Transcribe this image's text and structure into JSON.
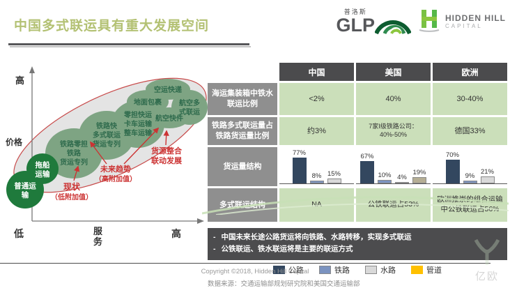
{
  "page": {
    "title": "中国多式联运具有重大发展空间",
    "copyright": "Copyright ©2018, Hidden Hill Capital",
    "watermark": "亿欧"
  },
  "logos": {
    "glp_cn": "普洛斯",
    "glp_en": "GLP",
    "hidden_hill_name": "HIDDEN HILL",
    "hidden_hill_cap": "CAPITAL"
  },
  "colors": {
    "title": "#b3c173",
    "table_col_header_bg": "#4b4b4d",
    "table_row_header_bg": "#8f8f8f",
    "table_cell_bg": "#cbdfba",
    "notes_bg": "#4c4c4e",
    "bubble_dark_green": "#1f7a3c",
    "bubble_sage_green": "#7ea483",
    "annotation_red": "#cc3333"
  },
  "diagram": {
    "y_axis_top": "高",
    "y_axis_label": "价格",
    "x_axis_left": "低",
    "x_axis_label_l1": "服",
    "x_axis_label_l2": "务",
    "x_axis_right": "高",
    "bubbles": [
      {
        "l1": "普通运",
        "l2": "输"
      },
      {
        "l1": "拖船",
        "l2": "运输"
      },
      {
        "l1": "铁路零担",
        "l2": "铁路",
        "l3": "货运专列"
      },
      {
        "l1": "铁路快",
        "l2": "多式联运",
        "l3": "货运专列"
      },
      {
        "l1": "零担快运",
        "l2": "卡车运输",
        "l3": "整车运输"
      },
      {
        "l1": "地面包裹"
      },
      {
        "l1": "空运快递"
      },
      {
        "l1": "航空快件"
      },
      {
        "l1": "航空多",
        "l2": "式联运"
      }
    ],
    "annotations": {
      "current": "现状",
      "current_sub": "（低附加值）",
      "future": "未来趋势",
      "future_sub": "（高附加值）",
      "integration_l1": "货源整合",
      "integration_l2": "联动发展"
    }
  },
  "table": {
    "columns": [
      "中国",
      "美国",
      "欧洲"
    ],
    "rows": [
      {
        "header": "海运集装箱中铁水联运比例",
        "values": [
          "<2%",
          "40%",
          "30-40%"
        ]
      },
      {
        "header": "铁路多式联运量占铁路货运量比例",
        "values": [
          "约3%",
          "7家I级铁路公司：40%-50%",
          "德国33%"
        ]
      },
      {
        "header": "货运量结构"
      },
      {
        "header": "多式联运结构",
        "values": [
          "NA",
          "公铁联运占53%",
          "欧洲推崇的组合运输中公铁联运占56%"
        ]
      }
    ]
  },
  "chart_data": {
    "type": "bar",
    "title": "货运量结构",
    "unit": "%",
    "ylim": [
      0,
      100
    ],
    "legend": [
      {
        "label": "公路",
        "color": "#33475f"
      },
      {
        "label": "铁路",
        "color": "#7b93c0"
      },
      {
        "label": "水路",
        "color": "#d9d9d9"
      },
      {
        "label": "管道",
        "color": "#ffc000"
      }
    ],
    "groups": [
      {
        "name": "中国",
        "bars": [
          {
            "series": "公路",
            "value": 77,
            "color": "#33475f"
          },
          {
            "series": "铁路",
            "value": 8,
            "color": "#7b93c0"
          },
          {
            "series": "水路",
            "value": 15,
            "color": "#d9d9d9"
          }
        ]
      },
      {
        "name": "美国",
        "bars": [
          {
            "series": "公路",
            "value": 67,
            "color": "#33475f"
          },
          {
            "series": "铁路",
            "value": 10,
            "color": "#7b93c0"
          },
          {
            "series": "水路",
            "value": 4,
            "color": "#ededed"
          },
          {
            "series": "管道",
            "value": 19,
            "color": "#b5ae94"
          }
        ]
      },
      {
        "name": "欧洲",
        "bars": [
          {
            "series": "公路",
            "value": 70,
            "color": "#33475f"
          },
          {
            "series": "铁路",
            "value": 9,
            "color": "#7b93c0"
          },
          {
            "series": "水路",
            "value": 21,
            "color": "#d9d9d9"
          }
        ]
      }
    ]
  },
  "notes": {
    "bullets": [
      "中国未来长途公路货运将向铁路、水路转移，实现多式联运",
      "公铁联运、铁水联运将是主要的联运方式"
    ],
    "source": "数据来源：交通运输部规划研究院和美国交通运输部"
  }
}
